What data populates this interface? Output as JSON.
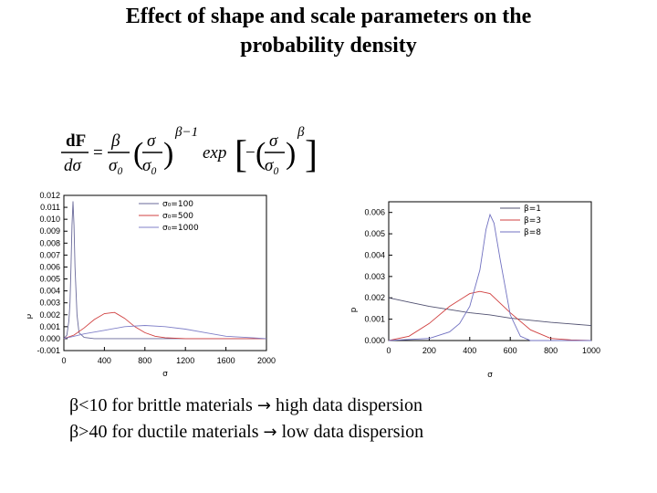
{
  "title_line1": "Effect of shape and scale parameters on the",
  "title_line2": "probability density",
  "formula": {
    "lhs_num": "dF",
    "lhs_den": "dσ",
    "eq": "=",
    "beta": "β",
    "sigma0": "σ₀",
    "sigma": "σ",
    "exponent": "β−1",
    "exp": "exp",
    "minus": "−"
  },
  "bullets": [
    {
      "text1": "β<10 for brittle materials",
      "arrow": "→",
      "text2": "high data dispersion"
    },
    {
      "text1": "β>40 for ductile materials",
      "arrow": "→",
      "text2": "low data dispersion"
    }
  ],
  "chart_data": [
    {
      "type": "line",
      "xlabel": "σ",
      "ylabel": "p",
      "xlim": [
        0,
        2000
      ],
      "ylim": [
        -0.001,
        0.012
      ],
      "xticks": [
        "0",
        "400",
        "800",
        "1200",
        "1600",
        "2000"
      ],
      "yticks": [
        "-0.001",
        "0.000",
        "0.001",
        "0.002",
        "0.003",
        "0.004",
        "0.005",
        "0.006",
        "0.007",
        "0.008",
        "0.009",
        "0.010",
        "0.011",
        "0.012"
      ],
      "legend_position": "top-right",
      "series": [
        {
          "name": "σ₀=100",
          "color": "#6a6a9a",
          "x": [
            0,
            30,
            50,
            60,
            70,
            80,
            90,
            100,
            110,
            130,
            150,
            200,
            300,
            2000
          ],
          "y": [
            0,
            0.0003,
            0.0015,
            0.003,
            0.006,
            0.0095,
            0.0115,
            0.0095,
            0.006,
            0.002,
            0.0005,
            0.0001,
            0,
            0
          ]
        },
        {
          "name": "σ₀=500",
          "color": "#d04040",
          "x": [
            0,
            100,
            200,
            300,
            400,
            500,
            600,
            700,
            800,
            900,
            1000,
            1200,
            2000
          ],
          "y": [
            0,
            0.0003,
            0.0009,
            0.0016,
            0.0021,
            0.0022,
            0.0017,
            0.001,
            0.0005,
            0.0002,
            8e-05,
            0,
            0
          ]
        },
        {
          "name": "σ₀=1000",
          "color": "#8080c8",
          "x": [
            0,
            200,
            400,
            600,
            800,
            1000,
            1200,
            1400,
            1600,
            1800,
            2000
          ],
          "y": [
            0,
            0.0004,
            0.0007,
            0.001,
            0.0011,
            0.001,
            0.0008,
            0.0005,
            0.0002,
            0.0001,
            0
          ]
        }
      ]
    },
    {
      "type": "line",
      "xlabel": "σ",
      "ylabel": "p",
      "xlim": [
        0,
        1000
      ],
      "ylim": [
        0,
        0.0065
      ],
      "xticks": [
        "0",
        "200",
        "400",
        "600",
        "800",
        "1000"
      ],
      "yticks": [
        "0.000",
        "0.001",
        "0.002",
        "0.003",
        "0.004",
        "0.005",
        "0.006"
      ],
      "legend_position": "top-right",
      "series": [
        {
          "name": "β=1",
          "color": "#505070",
          "x": [
            0,
            100,
            200,
            300,
            400,
            500,
            600,
            700,
            800,
            900,
            1000
          ],
          "y": [
            0.002,
            0.0018,
            0.0016,
            0.00145,
            0.0013,
            0.0012,
            0.00105,
            0.00095,
            0.00085,
            0.00078,
            0.0007
          ]
        },
        {
          "name": "β=3",
          "color": "#d04040",
          "x": [
            0,
            100,
            200,
            300,
            400,
            450,
            500,
            600,
            700,
            800,
            900,
            1000
          ],
          "y": [
            0,
            0.0002,
            0.0008,
            0.0016,
            0.0022,
            0.0023,
            0.0022,
            0.0013,
            0.0005,
            0.0001,
            3e-05,
            0
          ]
        },
        {
          "name": "β=8",
          "color": "#7070c0",
          "x": [
            0,
            200,
            300,
            350,
            400,
            450,
            480,
            500,
            520,
            550,
            600,
            650,
            700,
            1000
          ],
          "y": [
            0,
            0.0001,
            0.0004,
            0.0008,
            0.0016,
            0.0033,
            0.0052,
            0.0059,
            0.0055,
            0.0038,
            0.0012,
            0.0002,
            0,
            0
          ]
        }
      ]
    }
  ]
}
